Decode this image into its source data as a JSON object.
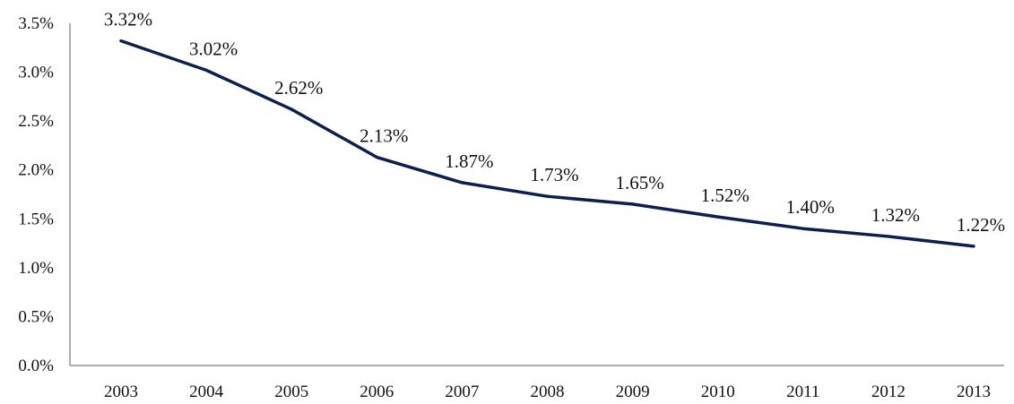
{
  "chart_data": {
    "type": "line",
    "categories": [
      "2003",
      "2004",
      "2005",
      "2006",
      "2007",
      "2008",
      "2009",
      "2010",
      "2011",
      "2012",
      "2013"
    ],
    "series": [
      {
        "values": [
          3.32,
          3.02,
          2.62,
          2.13,
          1.87,
          1.73,
          1.65,
          1.52,
          1.4,
          1.32,
          1.22
        ],
        "data_labels": [
          "3.32%",
          "3.02%",
          "2.62%",
          "2.13%",
          "1.87%",
          "1.73%",
          "1.65%",
          "1.52%",
          "1.40%",
          "1.32%",
          "1.22%"
        ],
        "color": "#0d1f4f"
      }
    ],
    "y_ticks": [
      "0.0%",
      "0.5%",
      "1.0%",
      "1.5%",
      "2.0%",
      "2.5%",
      "3.0%",
      "3.5%"
    ],
    "ylim": [
      0,
      3.5
    ],
    "grid": false,
    "legend": "none",
    "axis_color": "#7a7a7a",
    "label_color": "#111111"
  }
}
